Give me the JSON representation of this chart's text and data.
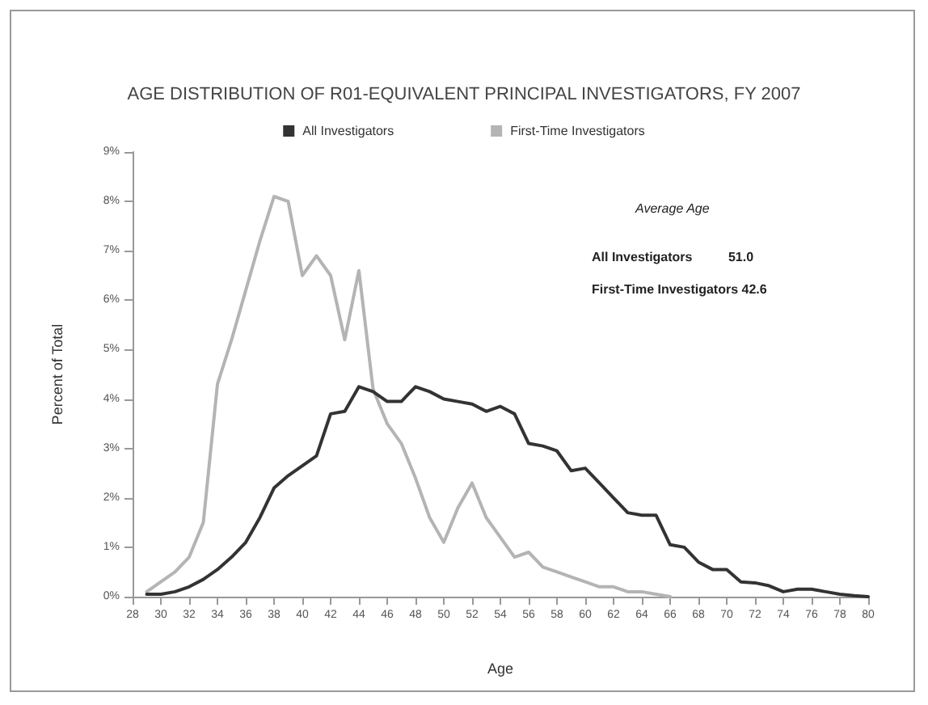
{
  "chart_data": {
    "type": "line",
    "title": "AGE DISTRIBUTION OF R01-EQUIVALENT PRINCIPAL INVESTIGATORS, FY 2007",
    "xlabel": "Age",
    "ylabel": "Percent of Total",
    "annotations": [
      "Average Age",
      "All Investigators          51.0",
      "First-Time Investigators 42.6"
    ],
    "series": [
      {
        "name": "All Investigators",
        "color": "#333333",
        "x": [
          29,
          30,
          31,
          32,
          33,
          34,
          35,
          36,
          37,
          38,
          39,
          40,
          41,
          42,
          43,
          44,
          45,
          46,
          47,
          48,
          49,
          50,
          51,
          52,
          53,
          54,
          55,
          56,
          57,
          58,
          59,
          60,
          61,
          62,
          63,
          64,
          65,
          66,
          67,
          68,
          69,
          70,
          71,
          72,
          73,
          74,
          75,
          76,
          77,
          78,
          79,
          80
        ],
        "values": [
          0.05,
          0.05,
          0.1,
          0.2,
          0.35,
          0.55,
          0.8,
          1.1,
          1.6,
          2.2,
          2.45,
          2.65,
          2.85,
          3.7,
          3.75,
          4.25,
          4.15,
          3.95,
          3.95,
          4.25,
          4.15,
          4.0,
          3.95,
          3.9,
          3.75,
          3.85,
          3.7,
          3.1,
          3.05,
          2.95,
          2.55,
          2.6,
          2.3,
          2.0,
          1.7,
          1.65,
          1.65,
          1.05,
          1.0,
          0.7,
          0.55,
          0.55,
          0.3,
          0.28,
          0.22,
          0.1,
          0.15,
          0.15,
          0.1,
          0.05,
          0.02,
          0.0
        ]
      },
      {
        "name": "First-Time Investigators",
        "color": "#b4b4b4",
        "x": [
          29,
          30,
          31,
          32,
          33,
          34,
          35,
          36,
          37,
          38,
          39,
          40,
          41,
          42,
          43,
          44,
          45,
          46,
          47,
          48,
          49,
          50,
          51,
          52,
          53,
          54,
          55,
          56,
          57,
          58,
          59,
          60,
          61,
          62,
          63,
          64,
          65,
          66
        ],
        "values": [
          0.1,
          0.3,
          0.5,
          0.8,
          1.5,
          4.3,
          5.2,
          6.2,
          7.2,
          8.1,
          8.0,
          6.5,
          6.9,
          6.5,
          5.2,
          6.6,
          4.2,
          3.5,
          3.1,
          2.4,
          1.6,
          1.1,
          1.8,
          2.3,
          1.6,
          1.2,
          0.8,
          0.9,
          0.6,
          0.5,
          0.4,
          0.3,
          0.2,
          0.2,
          0.1,
          0.1,
          0.05,
          0.0
        ]
      }
    ],
    "xlim": [
      28,
      80
    ],
    "xticks": [
      28,
      30,
      32,
      34,
      36,
      38,
      40,
      42,
      44,
      46,
      48,
      50,
      52,
      54,
      56,
      58,
      60,
      62,
      64,
      66,
      68,
      70,
      72,
      74,
      76,
      78,
      80
    ],
    "ylim": [
      0,
      9
    ],
    "yticks": [
      {
        "value": 0,
        "label": "0%"
      },
      {
        "value": 1,
        "label": "1%"
      },
      {
        "value": 2,
        "label": "2%"
      },
      {
        "value": 3,
        "label": "3%"
      },
      {
        "value": 4,
        "label": "4%"
      },
      {
        "value": 5,
        "label": "5%"
      },
      {
        "value": 6,
        "label": "6%"
      },
      {
        "value": 7,
        "label": "7%"
      },
      {
        "value": 8,
        "label": "8%"
      },
      {
        "value": 9,
        "label": "9%"
      }
    ],
    "legend": "top",
    "grid": false,
    "marker": "none",
    "line_style": "solid"
  }
}
